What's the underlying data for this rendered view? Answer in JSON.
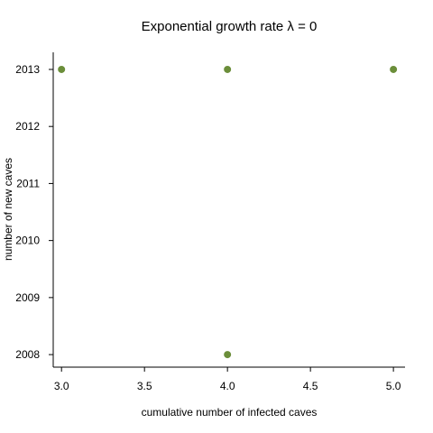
{
  "chart_data": {
    "type": "scatter",
    "title": "Exponential growth rate  λ = 0",
    "xlabel": "cumulative number of infected caves",
    "ylabel": "number of new caves",
    "xlim": [
      2.95,
      5.07
    ],
    "ylim": [
      2007.78,
      2013.3
    ],
    "x_ticks": [
      3.0,
      3.5,
      4.0,
      4.5,
      5.0
    ],
    "x_tick_labels": [
      "3.0",
      "3.5",
      "4.0",
      "4.5",
      "5.0"
    ],
    "y_ticks": [
      2008,
      2009,
      2010,
      2011,
      2012,
      2013
    ],
    "y_tick_labels": [
      "2008",
      "2009",
      "2010",
      "2011",
      "2012",
      "2013"
    ],
    "grid": false,
    "point_color": "#6b8e3a",
    "points": [
      {
        "x": 3.0,
        "y": 2013
      },
      {
        "x": 4.0,
        "y": 2013
      },
      {
        "x": 5.0,
        "y": 2013
      },
      {
        "x": 4.0,
        "y": 2008
      }
    ]
  }
}
